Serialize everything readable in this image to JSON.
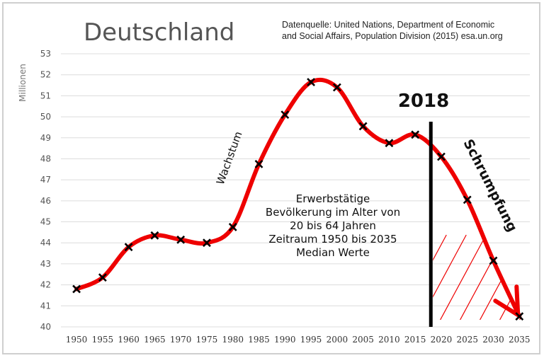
{
  "chart_data": {
    "type": "line",
    "title": "Deutschland",
    "source": [
      "Datenquelle: United Nations, Department of Economic",
      "and Social Affairs, Population Division (2015) esa.un.org"
    ],
    "ylabel": "Millionen",
    "ylim": [
      40,
      53
    ],
    "yticks": [
      40,
      41,
      42,
      43,
      44,
      45,
      46,
      47,
      48,
      49,
      50,
      51,
      52,
      53
    ],
    "x": [
      1950,
      1955,
      1960,
      1965,
      1970,
      1975,
      1980,
      1985,
      1990,
      1995,
      2000,
      2005,
      2010,
      2015,
      2020,
      2025,
      2030,
      2035
    ],
    "series": [
      {
        "values": [
          41.8,
          42.35,
          43.8,
          44.35,
          44.15,
          44.0,
          44.75,
          47.75,
          50.1,
          51.65,
          51.4,
          49.55,
          48.75,
          49.15,
          48.1,
          46.05,
          43.15,
          40.5
        ],
        "color": "#ee0000"
      }
    ],
    "marker_year_label": "2018",
    "marker_year": 2018,
    "annotation_lines": [
      "Erwerbstätige",
      "Bevölkerung im Alter von",
      "20 bis 64 Jahren",
      "Zeitraum 1950 bis 2035",
      "Median Werte"
    ],
    "growth_label": "Wachstum",
    "shrink_label": "Schrumpfung",
    "grid": true,
    "hatch_color": "#ee0000"
  }
}
